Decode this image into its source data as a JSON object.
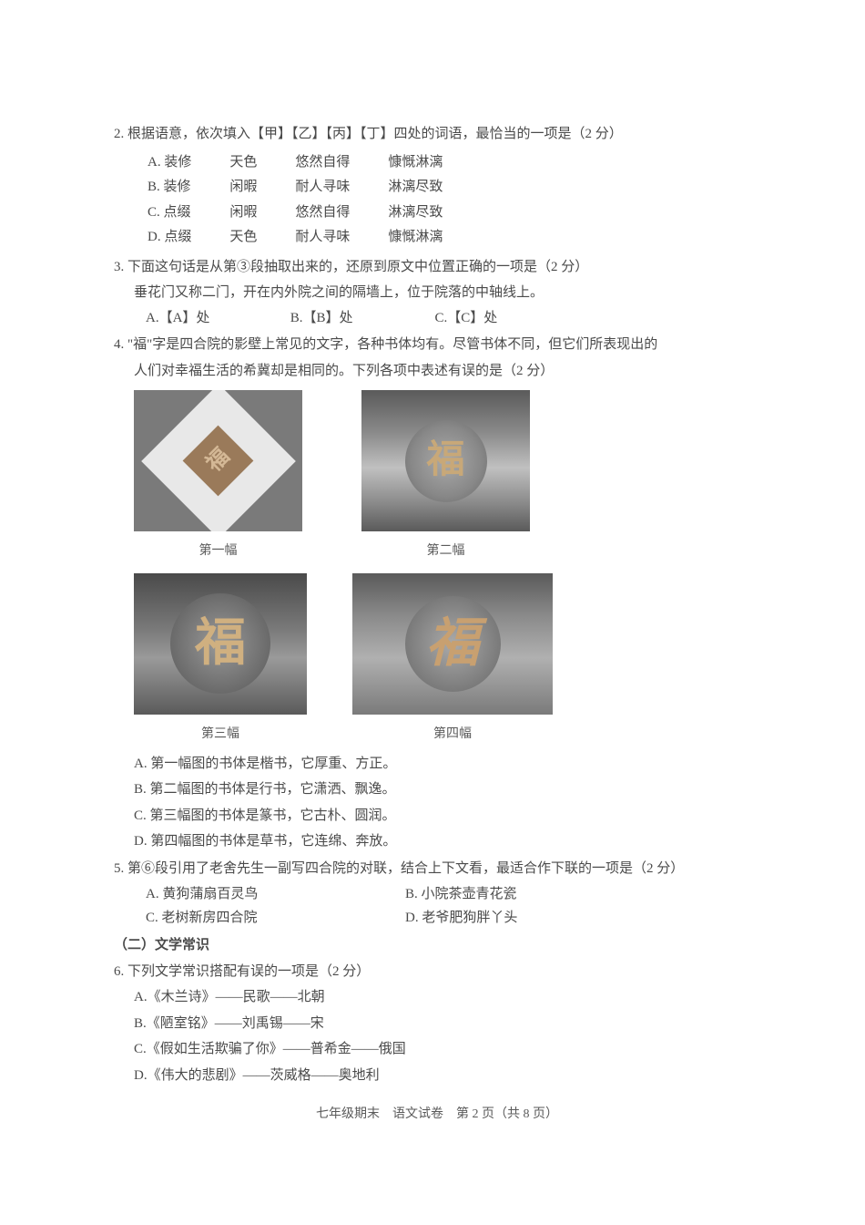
{
  "q2": {
    "text": "2. 根据语意，依次填入【甲】【乙】【丙】【丁】四处的词语，最恰当的一项是（2 分）",
    "options": {
      "a": {
        "label": "A. 装修",
        "c2": "天色",
        "c3": "悠然自得",
        "c4": "慷慨淋漓"
      },
      "b": {
        "label": "B. 装修",
        "c2": "闲暇",
        "c3": "耐人寻味",
        "c4": "淋漓尽致"
      },
      "c": {
        "label": "C. 点缀",
        "c2": "闲暇",
        "c3": "悠然自得",
        "c4": "淋漓尽致"
      },
      "d": {
        "label": "D. 点缀",
        "c2": "天色",
        "c3": "耐人寻味",
        "c4": "慷慨淋漓"
      }
    }
  },
  "q3": {
    "text": "3. 下面这句话是从第③段抽取出来的，还原到原文中位置正确的一项是（2 分）",
    "sub": "垂花门又称二门，开在内外院之间的隔墙上，位于院落的中轴线上。",
    "options": {
      "a": "A.【A】处",
      "b": "B.【B】处",
      "c": "C.【C】处"
    }
  },
  "q4": {
    "text1": "4. \"福\"字是四合院的影壁上常见的文字，各种书体均有。尽管书体不同，但它们所表现出的",
    "text2": "人们对幸福生活的希冀却是相同的。下列各项中表述有误的是（2 分）",
    "captions": {
      "c1": "第一幅",
      "c2": "第二幅",
      "c3": "第三幅",
      "c4": "第四幅"
    },
    "options": {
      "a": "A. 第一幅图的书体是楷书，它厚重、方正。",
      "b": "B. 第二幅图的书体是行书，它潇洒、飘逸。",
      "c": "C. 第三幅图的书体是篆书，它古朴、圆润。",
      "d": "D. 第四幅图的书体是草书，它连绵、奔放。"
    }
  },
  "q5": {
    "text": "5. 第⑥段引用了老舍先生一副写四合院的对联，结合上下文看，最适合作下联的一项是（2 分）",
    "options": {
      "a": "A. 黄狗蒲扇百灵鸟",
      "b": "B. 小院茶壶青花瓷",
      "c": "C. 老树新房四合院",
      "d": "D. 老爷肥狗胖丫头"
    }
  },
  "section2": {
    "header": "（二）文学常识"
  },
  "q6": {
    "text": "6. 下列文学常识搭配有误的一项是（2 分）",
    "options": {
      "a": "A.《木兰诗》——民歌——北朝",
      "b": "B.《陋室铭》——刘禹锡——宋",
      "c": "C.《假如生活欺骗了你》——普希金——俄国",
      "d": "D.《伟大的悲剧》——茨威格——奥地利"
    }
  },
  "footer": "七年级期末　语文试卷　第 2 页（共 8 页）",
  "fu_char": "福"
}
